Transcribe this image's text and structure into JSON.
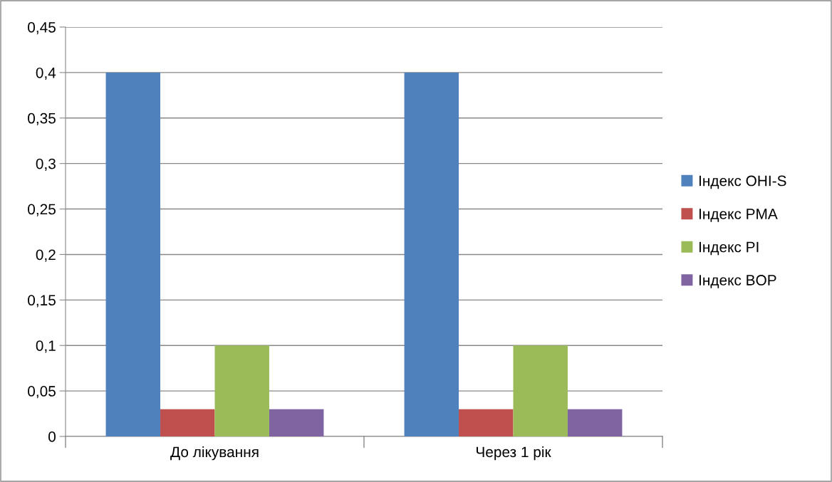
{
  "chart_data": {
    "type": "bar",
    "categories": [
      "До лікування",
      "Через 1 рік"
    ],
    "series": [
      {
        "name": "Індекс OHI-S",
        "color": "#4f81bd",
        "values": [
          0.4,
          0.4
        ]
      },
      {
        "name": "Індекс PMA",
        "color": "#c0504d",
        "values": [
          0.03,
          0.03
        ]
      },
      {
        "name": "Індекс PI",
        "color": "#9bbb59",
        "values": [
          0.1,
          0.1
        ]
      },
      {
        "name": "Індекс BOP",
        "color": "#8064a2",
        "values": [
          0.03,
          0.03
        ]
      }
    ],
    "ylim": [
      0,
      0.45
    ],
    "yticks": [
      {
        "value": 0,
        "label": "0"
      },
      {
        "value": 0.05,
        "label": "0,05"
      },
      {
        "value": 0.1,
        "label": "0,1"
      },
      {
        "value": 0.15,
        "label": "0,15"
      },
      {
        "value": 0.2,
        "label": "0,2"
      },
      {
        "value": 0.25,
        "label": "0,25"
      },
      {
        "value": 0.3,
        "label": "0,3"
      },
      {
        "value": 0.35,
        "label": "0,35"
      },
      {
        "value": 0.4,
        "label": "0,4"
      },
      {
        "value": 0.45,
        "label": "0,45"
      }
    ],
    "grid": "y",
    "legend": "right"
  }
}
